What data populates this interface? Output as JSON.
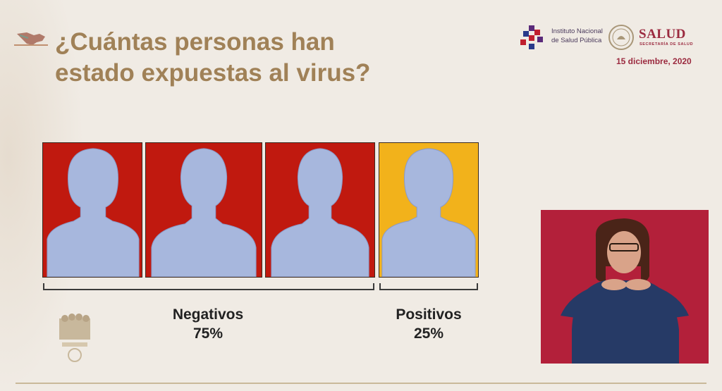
{
  "slide": {
    "title_line1": "¿Cuántas personas han",
    "title_line2": "estado expuestas al virus?",
    "institute": {
      "line1": "Instituto Nacional",
      "line2": "de Salud Pública"
    },
    "salud": {
      "name": "SALUD",
      "subtitle": "SECRETARÍA DE SALUD"
    },
    "date": "15 diciembre, 2020",
    "panels": [
      {
        "group": "negative",
        "figure": "female-silhouette-icon",
        "color": "#c0190f"
      },
      {
        "group": "negative",
        "figure": "male-silhouette-icon",
        "color": "#c0190f"
      },
      {
        "group": "negative",
        "figure": "male-silhouette-icon",
        "color": "#c0190f"
      },
      {
        "group": "positive",
        "figure": "female-silhouette-icon",
        "color": "#f2b21b"
      }
    ],
    "negative": {
      "label": "Negativos",
      "value": "75%"
    },
    "positive": {
      "label": "Positivos",
      "value": "25%"
    },
    "colors": {
      "title": "#a08157",
      "negative": "#c0190f",
      "positive": "#f2b21b",
      "silhouette": "#a7b7dd",
      "brand": "#9b2a3f",
      "interpreter_bg": "#b3203a"
    }
  }
}
